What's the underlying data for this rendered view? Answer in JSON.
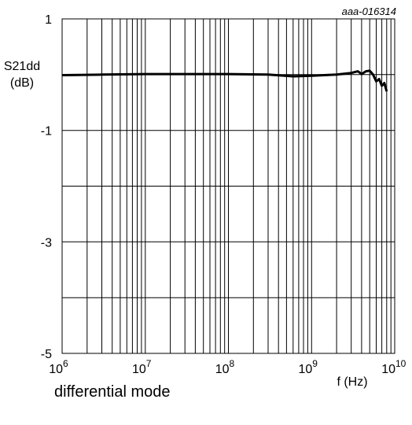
{
  "chart_data": {
    "type": "line",
    "id_label": "aaa-016314",
    "ylabel": "S21dd",
    "ylabel_unit": "(dB)",
    "xlabel": "f (Hz)",
    "x_scale": "log",
    "xlim": [
      1000000,
      10000000000
    ],
    "ylim": [
      -5,
      1
    ],
    "y_ticks": [
      "1",
      "-1",
      "-3",
      "-5"
    ],
    "y_grid_step": 1,
    "x_ticks": [
      {
        "base": "10",
        "exp": "6"
      },
      {
        "base": "10",
        "exp": "7"
      },
      {
        "base": "10",
        "exp": "8"
      },
      {
        "base": "10",
        "exp": "9"
      },
      {
        "base": "10",
        "exp": "10"
      }
    ],
    "grid": true,
    "line_color": "#000000",
    "series": [
      {
        "x": [
          1000000,
          3000000,
          10000000,
          30000000,
          100000000,
          300000000,
          600000000,
          1000000000,
          2000000000,
          3000000000,
          3600000000,
          4000000000,
          4500000000,
          5000000000,
          5500000000,
          6000000000,
          6500000000,
          7000000000,
          7500000000,
          8000000000
        ],
        "y": [
          -0.01,
          0.0,
          0.01,
          0.01,
          0.01,
          0.0,
          -0.03,
          -0.02,
          0.0,
          0.03,
          0.06,
          0.01,
          0.06,
          0.07,
          0.0,
          -0.12,
          -0.08,
          -0.2,
          -0.15,
          -0.3
        ]
      }
    ]
  },
  "caption": "differential mode"
}
